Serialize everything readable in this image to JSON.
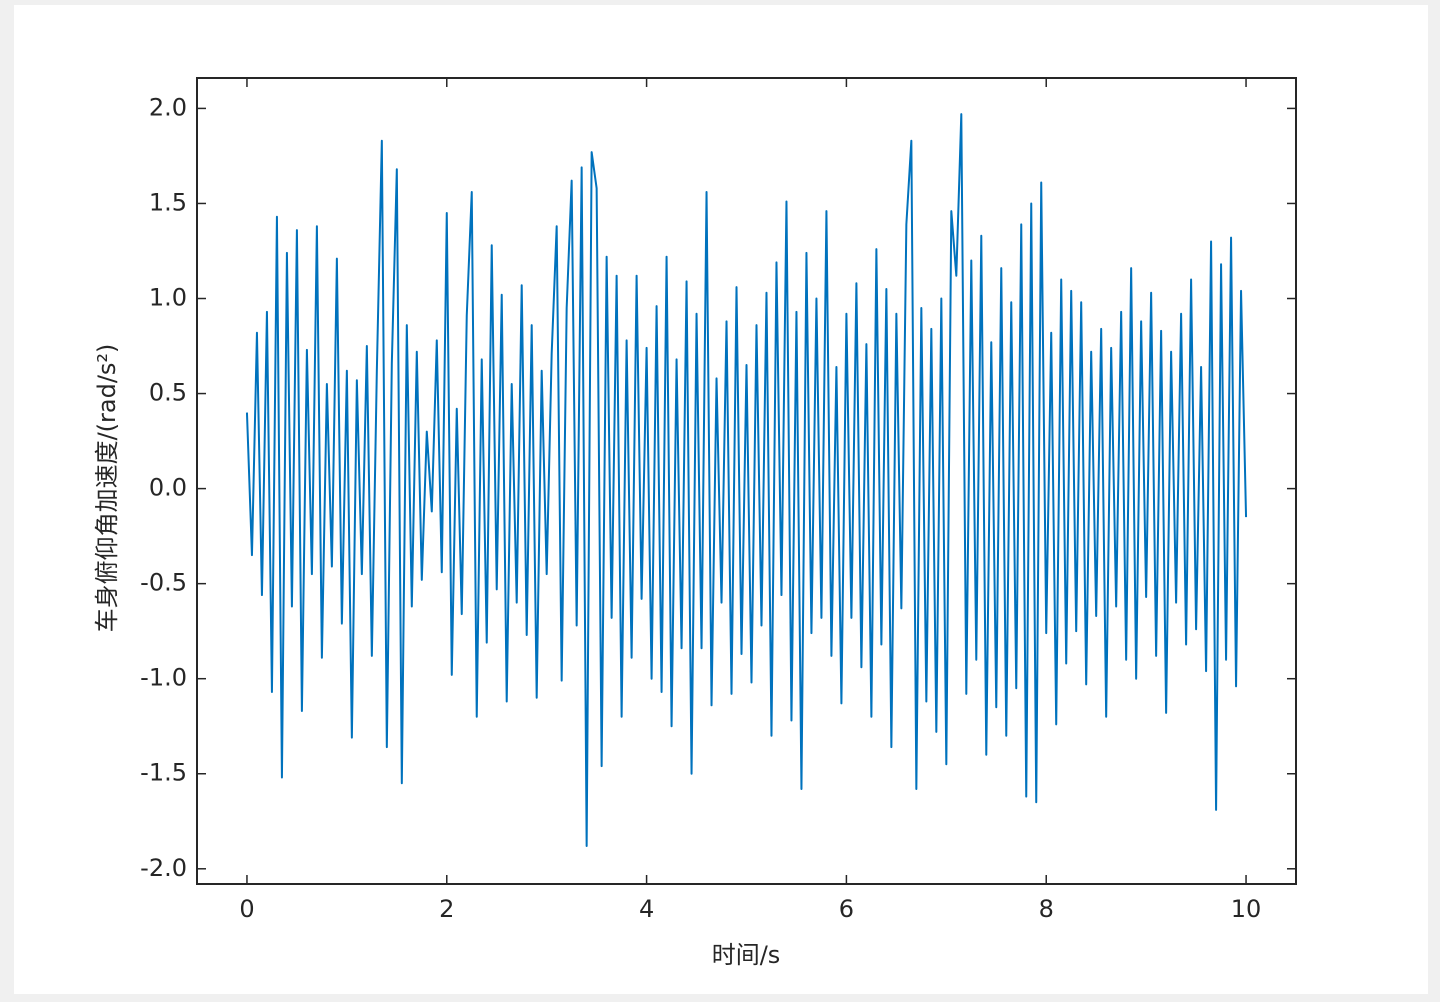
{
  "chart_data": {
    "type": "line",
    "xlabel": "时间/s",
    "ylabel": "车身俯仰角加速度/(rad/s²)",
    "xlim": [
      -0.5,
      10.5
    ],
    "ylim": [
      -2.08,
      2.16
    ],
    "xticks": [
      0,
      2,
      4,
      6,
      8,
      10
    ],
    "yticks": [
      {
        "value": 2,
        "label": "2.0"
      },
      1.5,
      {
        "value": 1,
        "label": "1.0"
      },
      0.5,
      {
        "value": 0,
        "label": "0.0"
      },
      -0.5,
      {
        "value": -1,
        "label": "-1.0"
      },
      -1.5,
      {
        "value": -2,
        "label": "-2.0"
      }
    ],
    "grid": false,
    "box": true,
    "x": [
      0,
      0.05,
      0.1,
      0.15,
      0.2,
      0.25,
      0.3,
      0.35,
      0.4,
      0.45,
      0.5,
      0.55,
      0.6,
      0.65,
      0.7,
      0.75,
      0.8,
      0.85,
      0.9,
      0.95,
      1,
      1.05,
      1.1,
      1.15,
      1.2,
      1.25,
      1.3,
      1.35,
      1.4,
      1.45,
      1.5,
      1.55,
      1.6,
      1.65,
      1.7,
      1.75,
      1.8,
      1.85,
      1.9,
      1.95,
      2,
      2.05,
      2.1,
      2.15,
      2.2,
      2.25,
      2.3,
      2.35,
      2.4,
      2.45,
      2.5,
      2.55,
      2.6,
      2.65,
      2.7,
      2.75,
      2.8,
      2.85,
      2.9,
      2.95,
      3,
      3.05,
      3.1,
      3.15,
      3.2,
      3.25,
      3.3,
      3.35,
      3.4,
      3.45,
      3.5,
      3.55,
      3.6,
      3.65,
      3.7,
      3.75,
      3.8,
      3.85,
      3.9,
      3.95,
      4,
      4.05,
      4.1,
      4.15,
      4.2,
      4.25,
      4.3,
      4.35,
      4.4,
      4.45,
      4.5,
      4.55,
      4.6,
      4.65,
      4.7,
      4.75,
      4.8,
      4.85,
      4.9,
      4.95,
      5,
      5.05,
      5.1,
      5.15,
      5.2,
      5.25,
      5.3,
      5.35,
      5.4,
      5.45,
      5.5,
      5.55,
      5.6,
      5.65,
      5.7,
      5.75,
      5.8,
      5.85,
      5.9,
      5.95,
      6,
      6.05,
      6.1,
      6.15,
      6.2,
      6.25,
      6.3,
      6.35,
      6.4,
      6.45,
      6.5,
      6.55,
      6.6,
      6.65,
      6.7,
      6.75,
      6.8,
      6.85,
      6.9,
      6.95,
      7,
      7.05,
      7.1,
      7.15,
      7.2,
      7.25,
      7.3,
      7.35,
      7.4,
      7.45,
      7.5,
      7.55,
      7.6,
      7.65,
      7.7,
      7.75,
      7.8,
      7.85,
      7.9,
      7.95,
      8,
      8.05,
      8.1,
      8.15,
      8.2,
      8.25,
      8.3,
      8.35,
      8.4,
      8.45,
      8.5,
      8.55,
      8.6,
      8.65,
      8.7,
      8.75,
      8.8,
      8.85,
      8.9,
      8.95,
      9,
      9.05,
      9.1,
      9.15,
      9.2,
      9.25,
      9.3,
      9.35,
      9.4,
      9.45,
      9.5,
      9.55,
      9.6,
      9.65,
      9.7,
      9.75,
      9.8,
      9.85,
      9.9,
      9.95,
      10
    ],
    "series": [
      {
        "color": "#0072bd",
        "values": [
          0.4,
          -0.35,
          0.82,
          -0.56,
          0.93,
          -1.07,
          1.43,
          -1.52,
          1.24,
          -0.62,
          1.36,
          -1.17,
          0.73,
          -0.45,
          1.38,
          -0.89,
          0.55,
          -0.41,
          1.21,
          -0.71,
          0.62,
          -1.31,
          0.57,
          -0.45,
          0.75,
          -0.88,
          0.62,
          1.83,
          -1.36,
          0.66,
          1.68,
          -1.55,
          0.86,
          -0.62,
          0.72,
          -0.48,
          0.3,
          -0.12,
          0.78,
          -0.44,
          1.45,
          -0.98,
          0.42,
          -0.66,
          0.91,
          1.56,
          -1.2,
          0.68,
          -0.81,
          1.28,
          -0.53,
          1.02,
          -1.12,
          0.55,
          -0.6,
          1.07,
          -0.77,
          0.86,
          -1.1,
          0.62,
          -0.45,
          0.71,
          1.38,
          -1.01,
          0.95,
          1.62,
          -0.72,
          1.69,
          -1.88,
          1.77,
          1.58,
          -1.46,
          1.22,
          -0.68,
          1.12,
          -1.2,
          0.78,
          -0.89,
          1.12,
          -0.58,
          0.74,
          -1.0,
          0.96,
          -1.07,
          1.22,
          -1.25,
          0.68,
          -0.84,
          1.09,
          -1.5,
          0.92,
          -0.84,
          1.56,
          -1.14,
          0.58,
          -0.6,
          0.88,
          -1.08,
          1.06,
          -0.87,
          0.65,
          -1.02,
          0.86,
          -0.72,
          1.03,
          -1.3,
          1.19,
          -0.56,
          1.51,
          -1.22,
          0.93,
          -1.58,
          1.24,
          -0.76,
          1.0,
          -0.68,
          1.46,
          -0.88,
          0.64,
          -1.13,
          0.92,
          -0.68,
          1.08,
          -0.94,
          0.76,
          -1.2,
          1.26,
          -0.82,
          1.05,
          -1.36,
          0.92,
          -0.63,
          1.39,
          1.83,
          -1.58,
          0.95,
          -1.12,
          0.84,
          -1.28,
          1.0,
          -1.45,
          1.46,
          1.12,
          1.97,
          -1.08,
          1.2,
          -0.9,
          1.33,
          -1.4,
          0.77,
          -1.15,
          1.16,
          -1.3,
          0.98,
          -1.05,
          1.39,
          -1.62,
          1.5,
          -1.65,
          1.61,
          -0.76,
          0.82,
          -1.24,
          1.1,
          -0.92,
          1.04,
          -0.75,
          0.98,
          -1.03,
          0.72,
          -0.67,
          0.84,
          -1.2,
          0.74,
          -0.62,
          0.93,
          -0.9,
          1.16,
          -1.0,
          0.88,
          -0.57,
          1.03,
          -0.88,
          0.83,
          -1.18,
          0.72,
          -0.6,
          0.92,
          -0.82,
          1.1,
          -0.74,
          0.64,
          -0.96,
          1.3,
          -1.69,
          1.18,
          -0.9,
          1.32,
          -1.04,
          1.04,
          -0.15
        ]
      }
    ]
  }
}
